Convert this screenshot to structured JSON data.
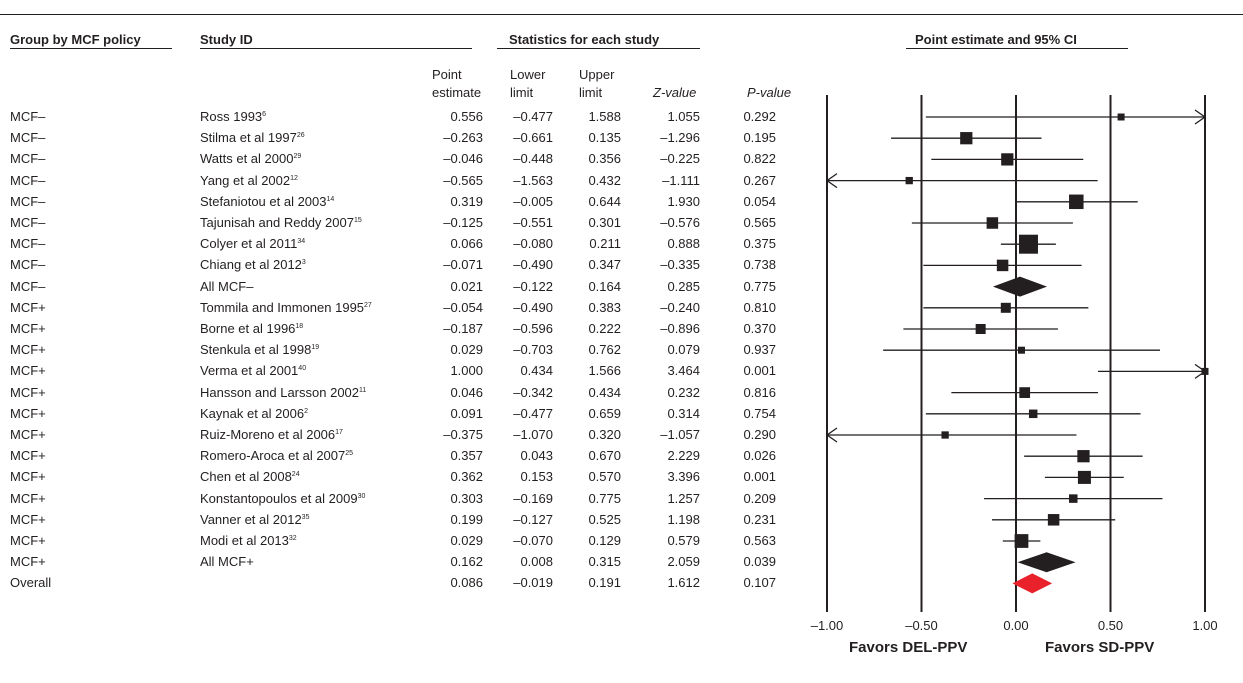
{
  "headers": {
    "group": "Group by MCF policy",
    "study": "Study ID",
    "stats": "Statistics for each study",
    "plot": "Point estimate and 95% CI"
  },
  "subheaders": {
    "point": [
      "Point",
      "estimate"
    ],
    "lower": [
      "Lower",
      "limit"
    ],
    "upper": [
      "Upper",
      "limit"
    ],
    "z": "Z-value",
    "p": "P-value"
  },
  "x_axis": {
    "ticks": [
      "–1.00",
      "–0.50",
      "0.00",
      "0.50",
      "1.00"
    ],
    "favors_left": "Favors DEL-PPV",
    "favors_right": "Favors SD-PPV"
  },
  "chart_data": {
    "type": "forest",
    "xlim": [
      -1,
      1
    ],
    "rows": [
      {
        "group": "MCF–",
        "study": "Ross 1993",
        "ref": "6",
        "point": "0.556",
        "lower": "–0.477",
        "upper": "1.588",
        "z": "1.055",
        "p": "0.292",
        "pv": 0.556,
        "lv": -0.477,
        "uv": 1.588,
        "w": 0.2,
        "kind": "study"
      },
      {
        "group": "MCF–",
        "study": "Stilma et al 1997",
        "ref": "26",
        "point": "–0.263",
        "lower": "–0.661",
        "upper": "0.135",
        "z": "–1.296",
        "p": "0.195",
        "pv": -0.263,
        "lv": -0.661,
        "uv": 0.135,
        "w": 0.55,
        "kind": "study"
      },
      {
        "group": "MCF–",
        "study": "Watts et al 2000",
        "ref": "29",
        "point": "–0.046",
        "lower": "–0.448",
        "upper": "0.356",
        "z": "–0.225",
        "p": "0.822",
        "pv": -0.046,
        "lv": -0.448,
        "uv": 0.356,
        "w": 0.55,
        "kind": "study"
      },
      {
        "group": "MCF–",
        "study": "Yang et al 2002",
        "ref": "12",
        "point": "–0.565",
        "lower": "–1.563",
        "upper": "0.432",
        "z": "–1.111",
        "p": "0.267",
        "pv": -0.565,
        "lv": -1.563,
        "uv": 0.432,
        "w": 0.22,
        "kind": "study"
      },
      {
        "group": "MCF–",
        "study": "Stefaniotou et al 2003",
        "ref": "14",
        "point": "0.319",
        "lower": "–0.005",
        "upper": "0.644",
        "z": "1.930",
        "p": "0.054",
        "pv": 0.319,
        "lv": -0.005,
        "uv": 0.644,
        "w": 0.7,
        "kind": "study"
      },
      {
        "group": "MCF–",
        "study": "Tajunisah and Reddy 2007",
        "ref": "15",
        "point": "–0.125",
        "lower": "–0.551",
        "upper": "0.301",
        "z": "–0.576",
        "p": "0.565",
        "pv": -0.125,
        "lv": -0.551,
        "uv": 0.301,
        "w": 0.5,
        "kind": "study"
      },
      {
        "group": "MCF–",
        "study": "Colyer et al 2011",
        "ref": "34",
        "point": "0.066",
        "lower": "–0.080",
        "upper": "0.211",
        "z": "0.888",
        "p": "0.375",
        "pv": 0.066,
        "lv": -0.08,
        "uv": 0.211,
        "w": 1.0,
        "kind": "study"
      },
      {
        "group": "MCF–",
        "study": "Chiang et al 2012",
        "ref": "3",
        "point": "–0.071",
        "lower": "–0.490",
        "upper": "0.347",
        "z": "–0.335",
        "p": "0.738",
        "pv": -0.071,
        "lv": -0.49,
        "uv": 0.347,
        "w": 0.5,
        "kind": "study"
      },
      {
        "group": "MCF–",
        "study": "All MCF–",
        "ref": "",
        "point": "0.021",
        "lower": "–0.122",
        "upper": "0.164",
        "z": "0.285",
        "p": "0.775",
        "pv": 0.021,
        "lv": -0.122,
        "uv": 0.164,
        "w": 0,
        "kind": "summary"
      },
      {
        "group": "MCF+",
        "study": "Tommila and Immonen 1995",
        "ref": "27",
        "point": "–0.054",
        "lower": "–0.490",
        "upper": "0.383",
        "z": "–0.240",
        "p": "0.810",
        "pv": -0.054,
        "lv": -0.49,
        "uv": 0.383,
        "w": 0.4,
        "kind": "study"
      },
      {
        "group": "MCF+",
        "study": "Borne et al 1996",
        "ref": "18",
        "point": "–0.187",
        "lower": "–0.596",
        "upper": "0.222",
        "z": "–0.896",
        "p": "0.370",
        "pv": -0.187,
        "lv": -0.596,
        "uv": 0.222,
        "w": 0.4,
        "kind": "study"
      },
      {
        "group": "MCF+",
        "study": "Stenkula et al 1998",
        "ref": "19",
        "point": "0.029",
        "lower": "–0.703",
        "upper": "0.762",
        "z": "0.079",
        "p": "0.937",
        "pv": 0.029,
        "lv": -0.703,
        "uv": 0.762,
        "w": 0.2,
        "kind": "study"
      },
      {
        "group": "MCF+",
        "study": "Verma et al 2001",
        "ref": "40",
        "point": "1.000",
        "lower": "0.434",
        "upper": "1.566",
        "z": "3.464",
        "p": "0.001",
        "pv": 1.0,
        "lv": 0.434,
        "uv": 1.566,
        "w": 0.2,
        "kind": "study"
      },
      {
        "group": "MCF+",
        "study": "Hansson and Larsson 2002",
        "ref": "11",
        "point": "0.046",
        "lower": "–0.342",
        "upper": "0.434",
        "z": "0.232",
        "p": "0.816",
        "pv": 0.046,
        "lv": -0.342,
        "uv": 0.434,
        "w": 0.45,
        "kind": "study"
      },
      {
        "group": "MCF+",
        "study": "Kaynak et al 2006",
        "ref": "2",
        "point": "0.091",
        "lower": "–0.477",
        "upper": "0.659",
        "z": "0.314",
        "p": "0.754",
        "pv": 0.091,
        "lv": -0.477,
        "uv": 0.659,
        "w": 0.3,
        "kind": "study"
      },
      {
        "group": "MCF+",
        "study": "Ruiz-Moreno et al 2006",
        "ref": "17",
        "point": "–0.375",
        "lower": "–1.070",
        "upper": "0.320",
        "z": "–1.057",
        "p": "0.290",
        "pv": -0.375,
        "lv": -1.07,
        "uv": 0.32,
        "w": 0.22,
        "kind": "study"
      },
      {
        "group": "MCF+",
        "study": "Romero-Aroca et al 2007",
        "ref": "25",
        "point": "0.357",
        "lower": "0.043",
        "upper": "0.670",
        "z": "2.229",
        "p": "0.026",
        "pv": 0.357,
        "lv": 0.043,
        "uv": 0.67,
        "w": 0.55,
        "kind": "study"
      },
      {
        "group": "MCF+",
        "study": "Chen et al 2008",
        "ref": "24",
        "point": "0.362",
        "lower": "0.153",
        "upper": "0.570",
        "z": "3.396",
        "p": "0.001",
        "pv": 0.362,
        "lv": 0.153,
        "uv": 0.57,
        "w": 0.6,
        "kind": "study"
      },
      {
        "group": "MCF+",
        "study": "Konstantopoulos et al 2009",
        "ref": "30",
        "point": "0.303",
        "lower": "–0.169",
        "upper": "0.775",
        "z": "1.257",
        "p": "0.209",
        "pv": 0.303,
        "lv": -0.169,
        "uv": 0.775,
        "w": 0.3,
        "kind": "study"
      },
      {
        "group": "MCF+",
        "study": "Vanner et al 2012",
        "ref": "35",
        "point": "0.199",
        "lower": "–0.127",
        "upper": "0.525",
        "z": "1.198",
        "p": "0.231",
        "pv": 0.199,
        "lv": -0.127,
        "uv": 0.525,
        "w": 0.5,
        "kind": "study"
      },
      {
        "group": "MCF+",
        "study": "Modi et al 2013",
        "ref": "32",
        "point": "0.029",
        "lower": "–0.070",
        "upper": "0.129",
        "z": "0.579",
        "p": "0.563",
        "pv": 0.029,
        "lv": -0.07,
        "uv": 0.129,
        "w": 0.65,
        "kind": "study"
      },
      {
        "group": "MCF+",
        "study": "All MCF+",
        "ref": "",
        "point": "0.162",
        "lower": "0.008",
        "upper": "0.315",
        "z": "2.059",
        "p": "0.039",
        "pv": 0.162,
        "lv": 0.008,
        "uv": 0.315,
        "w": 0,
        "kind": "summary"
      },
      {
        "group": "Overall",
        "study": "",
        "ref": "",
        "point": "0.086",
        "lower": "–0.019",
        "upper": "0.191",
        "z": "1.612",
        "p": "0.107",
        "pv": 0.086,
        "lv": -0.019,
        "uv": 0.191,
        "w": 0,
        "kind": "overall"
      }
    ],
    "colors": {
      "ink": "#231f20",
      "overall": "#e8212a"
    }
  }
}
